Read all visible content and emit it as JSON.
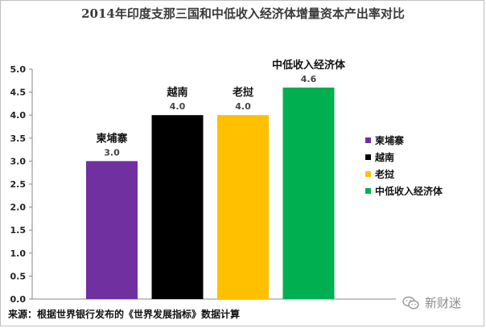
{
  "chart_data": {
    "type": "bar",
    "title": "2014年印度支那三国和中低收入经济体增量资本产出率对比",
    "categories": [
      "柬埔寨",
      "越南",
      "老挝",
      "中低收入经济体"
    ],
    "values": [
      3.0,
      4.0,
      4.0,
      4.6
    ],
    "value_labels": [
      "3.0",
      "4.0",
      "4.0",
      "4.6"
    ],
    "colors": [
      "#7030a0",
      "#000000",
      "#ffc000",
      "#00b050"
    ],
    "yticks": [
      "0.0",
      "0.5",
      "1.0",
      "1.5",
      "2.0",
      "2.5",
      "3.0",
      "3.5",
      "4.0",
      "4.5",
      "5.0"
    ],
    "ylim": [
      0,
      5.0
    ],
    "xlabel": "",
    "ylabel": "",
    "legend": [
      "柬埔寨",
      "越南",
      "老挝",
      "中低收入经济体"
    ],
    "legend_position": "right",
    "grid": false
  },
  "source_note": "来源：根据世界银行发布的《世界发展指标》数据计算",
  "watermark_text": "新财迷"
}
